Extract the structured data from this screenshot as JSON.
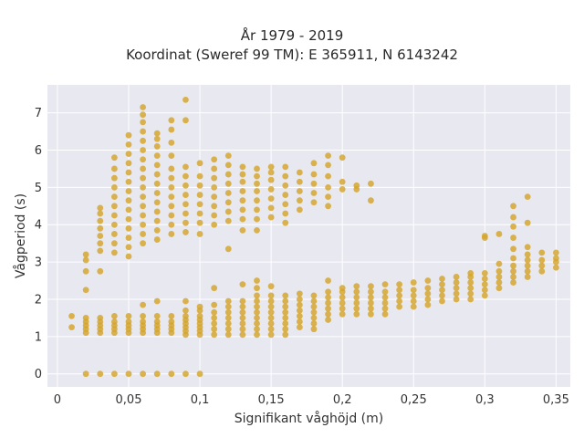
{
  "chart_data": {
    "type": "scatter",
    "title": "År 1979 - 2019",
    "subtitle": "Koordinat (Sweref 99 TM): E 365911, N 6143242",
    "xlabel": "Signifikant våghöjd (m)",
    "ylabel": "Vågperiod (s)",
    "xlim": [
      -0.007,
      0.36
    ],
    "ylim": [
      -0.35,
      7.75
    ],
    "xticks": [
      0,
      0.05,
      0.1,
      0.15,
      0.2,
      0.25,
      0.3,
      0.35
    ],
    "xtick_labels": [
      "0",
      "0,05",
      "0,1",
      "0,15",
      "0,2",
      "0,25",
      "0,3",
      "0,35"
    ],
    "yticks": [
      0,
      1,
      2,
      3,
      4,
      5,
      6,
      7
    ],
    "ytick_labels": [
      "0",
      "1",
      "2",
      "3",
      "4",
      "5",
      "6",
      "7"
    ],
    "grid": true,
    "marker_color": "#d4a52a",
    "background_color": "#e8e8f0",
    "points": [
      [
        0.01,
        1.55
      ],
      [
        0.01,
        1.25
      ],
      [
        0.02,
        0
      ],
      [
        0.02,
        1.1
      ],
      [
        0.02,
        1.2
      ],
      [
        0.02,
        1.3
      ],
      [
        0.02,
        1.4
      ],
      [
        0.02,
        1.5
      ],
      [
        0.02,
        2.25
      ],
      [
        0.02,
        2.75
      ],
      [
        0.02,
        3.05
      ],
      [
        0.02,
        3.2
      ],
      [
        0.03,
        0
      ],
      [
        0.03,
        1.1
      ],
      [
        0.03,
        1.2
      ],
      [
        0.03,
        1.3
      ],
      [
        0.03,
        1.4
      ],
      [
        0.03,
        1.5
      ],
      [
        0.03,
        2.75
      ],
      [
        0.03,
        3.3
      ],
      [
        0.03,
        3.5
      ],
      [
        0.03,
        3.7
      ],
      [
        0.03,
        3.9
      ],
      [
        0.03,
        4.1
      ],
      [
        0.03,
        4.3
      ],
      [
        0.03,
        4.45
      ],
      [
        0.04,
        0
      ],
      [
        0.04,
        1.1
      ],
      [
        0.04,
        1.2
      ],
      [
        0.04,
        1.3
      ],
      [
        0.04,
        1.4
      ],
      [
        0.04,
        1.55
      ],
      [
        0.04,
        3.25
      ],
      [
        0.04,
        3.5
      ],
      [
        0.04,
        3.75
      ],
      [
        0.04,
        4.0
      ],
      [
        0.04,
        4.25
      ],
      [
        0.04,
        4.5
      ],
      [
        0.04,
        4.75
      ],
      [
        0.04,
        5.0
      ],
      [
        0.04,
        5.25
      ],
      [
        0.04,
        5.5
      ],
      [
        0.04,
        5.8
      ],
      [
        0.05,
        0
      ],
      [
        0.05,
        1.1
      ],
      [
        0.05,
        1.2
      ],
      [
        0.05,
        1.3
      ],
      [
        0.05,
        1.4
      ],
      [
        0.05,
        1.55
      ],
      [
        0.05,
        3.15
      ],
      [
        0.05,
        3.4
      ],
      [
        0.05,
        3.65
      ],
      [
        0.05,
        3.9
      ],
      [
        0.05,
        4.15
      ],
      [
        0.05,
        4.4
      ],
      [
        0.05,
        4.65
      ],
      [
        0.05,
        4.9
      ],
      [
        0.05,
        5.15
      ],
      [
        0.05,
        5.4
      ],
      [
        0.05,
        5.65
      ],
      [
        0.05,
        5.9
      ],
      [
        0.05,
        6.15
      ],
      [
        0.05,
        6.4
      ],
      [
        0.06,
        0
      ],
      [
        0.06,
        1.1
      ],
      [
        0.06,
        1.2
      ],
      [
        0.06,
        1.3
      ],
      [
        0.06,
        1.4
      ],
      [
        0.06,
        1.55
      ],
      [
        0.06,
        1.85
      ],
      [
        0.06,
        3.5
      ],
      [
        0.06,
        3.75
      ],
      [
        0.06,
        4.0
      ],
      [
        0.06,
        4.25
      ],
      [
        0.06,
        4.5
      ],
      [
        0.06,
        4.75
      ],
      [
        0.06,
        5.0
      ],
      [
        0.06,
        5.25
      ],
      [
        0.06,
        5.5
      ],
      [
        0.06,
        5.75
      ],
      [
        0.06,
        6.0
      ],
      [
        0.06,
        6.25
      ],
      [
        0.06,
        6.5
      ],
      [
        0.06,
        6.75
      ],
      [
        0.06,
        6.95
      ],
      [
        0.06,
        7.15
      ],
      [
        0.07,
        0
      ],
      [
        0.07,
        1.1
      ],
      [
        0.07,
        1.2
      ],
      [
        0.07,
        1.3
      ],
      [
        0.07,
        1.4
      ],
      [
        0.07,
        1.55
      ],
      [
        0.07,
        1.95
      ],
      [
        0.07,
        3.6
      ],
      [
        0.07,
        3.85
      ],
      [
        0.07,
        4.1
      ],
      [
        0.07,
        4.35
      ],
      [
        0.07,
        4.6
      ],
      [
        0.07,
        4.85
      ],
      [
        0.07,
        5.1
      ],
      [
        0.07,
        5.35
      ],
      [
        0.07,
        5.6
      ],
      [
        0.07,
        5.85
      ],
      [
        0.07,
        6.1
      ],
      [
        0.07,
        6.3
      ],
      [
        0.07,
        6.45
      ],
      [
        0.08,
        0
      ],
      [
        0.08,
        1.1
      ],
      [
        0.08,
        1.2
      ],
      [
        0.08,
        1.3
      ],
      [
        0.08,
        1.4
      ],
      [
        0.08,
        1.55
      ],
      [
        0.08,
        3.75
      ],
      [
        0.08,
        4.0
      ],
      [
        0.08,
        4.25
      ],
      [
        0.08,
        4.5
      ],
      [
        0.08,
        4.75
      ],
      [
        0.08,
        5.0
      ],
      [
        0.08,
        5.25
      ],
      [
        0.08,
        5.5
      ],
      [
        0.08,
        5.85
      ],
      [
        0.08,
        6.2
      ],
      [
        0.08,
        6.55
      ],
      [
        0.08,
        6.8
      ],
      [
        0.09,
        0
      ],
      [
        0.09,
        1.05
      ],
      [
        0.09,
        1.15
      ],
      [
        0.09,
        1.25
      ],
      [
        0.09,
        1.35
      ],
      [
        0.09,
        1.45
      ],
      [
        0.09,
        1.55
      ],
      [
        0.09,
        1.7
      ],
      [
        0.09,
        1.95
      ],
      [
        0.09,
        3.8
      ],
      [
        0.09,
        4.05
      ],
      [
        0.09,
        4.3
      ],
      [
        0.09,
        4.55
      ],
      [
        0.09,
        4.8
      ],
      [
        0.09,
        5.05
      ],
      [
        0.09,
        5.3
      ],
      [
        0.09,
        5.55
      ],
      [
        0.09,
        6.8
      ],
      [
        0.09,
        7.35
      ],
      [
        0.1,
        0
      ],
      [
        0.1,
        1.05
      ],
      [
        0.1,
        1.15
      ],
      [
        0.1,
        1.25
      ],
      [
        0.1,
        1.35
      ],
      [
        0.1,
        1.45
      ],
      [
        0.1,
        1.55
      ],
      [
        0.1,
        1.7
      ],
      [
        0.1,
        1.8
      ],
      [
        0.1,
        3.75
      ],
      [
        0.1,
        4.05
      ],
      [
        0.1,
        4.3
      ],
      [
        0.1,
        4.55
      ],
      [
        0.1,
        4.8
      ],
      [
        0.1,
        5.05
      ],
      [
        0.1,
        5.3
      ],
      [
        0.1,
        5.65
      ],
      [
        0.11,
        1.05
      ],
      [
        0.11,
        1.2
      ],
      [
        0.11,
        1.35
      ],
      [
        0.11,
        1.5
      ],
      [
        0.11,
        1.65
      ],
      [
        0.11,
        1.85
      ],
      [
        0.11,
        2.3
      ],
      [
        0.11,
        4.0
      ],
      [
        0.11,
        4.25
      ],
      [
        0.11,
        4.5
      ],
      [
        0.11,
        4.75
      ],
      [
        0.11,
        5.0
      ],
      [
        0.11,
        5.25
      ],
      [
        0.11,
        5.5
      ],
      [
        0.11,
        5.75
      ],
      [
        0.12,
        1.05
      ],
      [
        0.12,
        1.2
      ],
      [
        0.12,
        1.35
      ],
      [
        0.12,
        1.5
      ],
      [
        0.12,
        1.65
      ],
      [
        0.12,
        1.8
      ],
      [
        0.12,
        1.95
      ],
      [
        0.12,
        3.35
      ],
      [
        0.12,
        4.1
      ],
      [
        0.12,
        4.35
      ],
      [
        0.12,
        4.6
      ],
      [
        0.12,
        4.85
      ],
      [
        0.12,
        5.1
      ],
      [
        0.12,
        5.35
      ],
      [
        0.12,
        5.6
      ],
      [
        0.12,
        5.85
      ],
      [
        0.13,
        1.05
      ],
      [
        0.13,
        1.2
      ],
      [
        0.13,
        1.35
      ],
      [
        0.13,
        1.5
      ],
      [
        0.13,
        1.65
      ],
      [
        0.13,
        1.8
      ],
      [
        0.13,
        1.95
      ],
      [
        0.13,
        2.4
      ],
      [
        0.13,
        3.85
      ],
      [
        0.13,
        4.15
      ],
      [
        0.13,
        4.4
      ],
      [
        0.13,
        4.65
      ],
      [
        0.13,
        4.9
      ],
      [
        0.13,
        5.15
      ],
      [
        0.13,
        5.35
      ],
      [
        0.13,
        5.55
      ],
      [
        0.14,
        1.05
      ],
      [
        0.14,
        1.2
      ],
      [
        0.14,
        1.35
      ],
      [
        0.14,
        1.5
      ],
      [
        0.14,
        1.65
      ],
      [
        0.14,
        1.8
      ],
      [
        0.14,
        1.95
      ],
      [
        0.14,
        2.1
      ],
      [
        0.14,
        2.3
      ],
      [
        0.14,
        2.5
      ],
      [
        0.14,
        3.85
      ],
      [
        0.14,
        4.15
      ],
      [
        0.14,
        4.4
      ],
      [
        0.14,
        4.65
      ],
      [
        0.14,
        4.9
      ],
      [
        0.14,
        5.1
      ],
      [
        0.14,
        5.3
      ],
      [
        0.14,
        5.5
      ],
      [
        0.15,
        1.05
      ],
      [
        0.15,
        1.2
      ],
      [
        0.15,
        1.35
      ],
      [
        0.15,
        1.5
      ],
      [
        0.15,
        1.65
      ],
      [
        0.15,
        1.8
      ],
      [
        0.15,
        1.95
      ],
      [
        0.15,
        2.1
      ],
      [
        0.15,
        2.35
      ],
      [
        0.15,
        4.2
      ],
      [
        0.15,
        4.45
      ],
      [
        0.15,
        4.7
      ],
      [
        0.15,
        4.95
      ],
      [
        0.15,
        5.2
      ],
      [
        0.15,
        5.4
      ],
      [
        0.15,
        5.55
      ],
      [
        0.16,
        1.05
      ],
      [
        0.16,
        1.2
      ],
      [
        0.16,
        1.35
      ],
      [
        0.16,
        1.5
      ],
      [
        0.16,
        1.65
      ],
      [
        0.16,
        1.8
      ],
      [
        0.16,
        1.95
      ],
      [
        0.16,
        2.1
      ],
      [
        0.16,
        4.05
      ],
      [
        0.16,
        4.3
      ],
      [
        0.16,
        4.55
      ],
      [
        0.16,
        4.8
      ],
      [
        0.16,
        5.05
      ],
      [
        0.16,
        5.3
      ],
      [
        0.16,
        5.55
      ],
      [
        0.17,
        1.25
      ],
      [
        0.17,
        1.4
      ],
      [
        0.17,
        1.55
      ],
      [
        0.17,
        1.7
      ],
      [
        0.17,
        1.85
      ],
      [
        0.17,
        2.0
      ],
      [
        0.17,
        2.15
      ],
      [
        0.17,
        4.4
      ],
      [
        0.17,
        4.65
      ],
      [
        0.17,
        4.9
      ],
      [
        0.17,
        5.15
      ],
      [
        0.17,
        5.4
      ],
      [
        0.18,
        1.2
      ],
      [
        0.18,
        1.35
      ],
      [
        0.18,
        1.5
      ],
      [
        0.18,
        1.65
      ],
      [
        0.18,
        1.8
      ],
      [
        0.18,
        1.95
      ],
      [
        0.18,
        2.1
      ],
      [
        0.18,
        4.6
      ],
      [
        0.18,
        4.85
      ],
      [
        0.18,
        5.1
      ],
      [
        0.18,
        5.35
      ],
      [
        0.18,
        5.65
      ],
      [
        0.19,
        1.45
      ],
      [
        0.19,
        1.6
      ],
      [
        0.19,
        1.75
      ],
      [
        0.19,
        1.9
      ],
      [
        0.19,
        2.05
      ],
      [
        0.19,
        2.2
      ],
      [
        0.19,
        2.5
      ],
      [
        0.19,
        4.5
      ],
      [
        0.19,
        4.75
      ],
      [
        0.19,
        5.0
      ],
      [
        0.19,
        5.3
      ],
      [
        0.19,
        5.6
      ],
      [
        0.19,
        5.85
      ],
      [
        0.2,
        1.6
      ],
      [
        0.2,
        1.75
      ],
      [
        0.2,
        1.9
      ],
      [
        0.2,
        2.05
      ],
      [
        0.2,
        2.2
      ],
      [
        0.2,
        2.3
      ],
      [
        0.2,
        4.95
      ],
      [
        0.2,
        5.15
      ],
      [
        0.2,
        5.8
      ],
      [
        0.21,
        1.6
      ],
      [
        0.21,
        1.75
      ],
      [
        0.21,
        1.9
      ],
      [
        0.21,
        2.05
      ],
      [
        0.21,
        2.2
      ],
      [
        0.21,
        2.35
      ],
      [
        0.21,
        4.95
      ],
      [
        0.21,
        5.05
      ],
      [
        0.22,
        1.6
      ],
      [
        0.22,
        1.75
      ],
      [
        0.22,
        1.9
      ],
      [
        0.22,
        2.05
      ],
      [
        0.22,
        2.2
      ],
      [
        0.22,
        2.35
      ],
      [
        0.22,
        4.65
      ],
      [
        0.22,
        5.1
      ],
      [
        0.23,
        1.6
      ],
      [
        0.23,
        1.75
      ],
      [
        0.23,
        1.9
      ],
      [
        0.23,
        2.05
      ],
      [
        0.23,
        2.2
      ],
      [
        0.23,
        2.4
      ],
      [
        0.24,
        1.8
      ],
      [
        0.24,
        1.95
      ],
      [
        0.24,
        2.1
      ],
      [
        0.24,
        2.25
      ],
      [
        0.24,
        2.4
      ],
      [
        0.25,
        1.8
      ],
      [
        0.25,
        1.95
      ],
      [
        0.25,
        2.1
      ],
      [
        0.25,
        2.25
      ],
      [
        0.25,
        2.45
      ],
      [
        0.26,
        1.85
      ],
      [
        0.26,
        2.0
      ],
      [
        0.26,
        2.15
      ],
      [
        0.26,
        2.3
      ],
      [
        0.26,
        2.5
      ],
      [
        0.27,
        1.95
      ],
      [
        0.27,
        2.1
      ],
      [
        0.27,
        2.25
      ],
      [
        0.27,
        2.4
      ],
      [
        0.27,
        2.55
      ],
      [
        0.28,
        2.0
      ],
      [
        0.28,
        2.15
      ],
      [
        0.28,
        2.3
      ],
      [
        0.28,
        2.45
      ],
      [
        0.28,
        2.6
      ],
      [
        0.29,
        2.0
      ],
      [
        0.29,
        2.15
      ],
      [
        0.29,
        2.3
      ],
      [
        0.29,
        2.45
      ],
      [
        0.29,
        2.6
      ],
      [
        0.29,
        2.7
      ],
      [
        0.3,
        2.1
      ],
      [
        0.3,
        2.25
      ],
      [
        0.3,
        2.4
      ],
      [
        0.3,
        2.55
      ],
      [
        0.3,
        2.7
      ],
      [
        0.3,
        3.65
      ],
      [
        0.3,
        3.7
      ],
      [
        0.31,
        2.3
      ],
      [
        0.31,
        2.45
      ],
      [
        0.31,
        2.6
      ],
      [
        0.31,
        2.75
      ],
      [
        0.31,
        2.95
      ],
      [
        0.31,
        3.75
      ],
      [
        0.32,
        2.45
      ],
      [
        0.32,
        2.6
      ],
      [
        0.32,
        2.75
      ],
      [
        0.32,
        2.9
      ],
      [
        0.32,
        3.1
      ],
      [
        0.32,
        3.35
      ],
      [
        0.32,
        3.65
      ],
      [
        0.32,
        3.95
      ],
      [
        0.32,
        4.2
      ],
      [
        0.32,
        4.5
      ],
      [
        0.33,
        2.6
      ],
      [
        0.33,
        2.75
      ],
      [
        0.33,
        2.9
      ],
      [
        0.33,
        3.05
      ],
      [
        0.33,
        3.2
      ],
      [
        0.33,
        3.4
      ],
      [
        0.33,
        4.05
      ],
      [
        0.33,
        4.75
      ],
      [
        0.34,
        2.75
      ],
      [
        0.34,
        2.9
      ],
      [
        0.34,
        3.05
      ],
      [
        0.34,
        3.25
      ],
      [
        0.35,
        2.85
      ],
      [
        0.35,
        3.0
      ],
      [
        0.35,
        3.1
      ],
      [
        0.35,
        3.25
      ]
    ]
  }
}
